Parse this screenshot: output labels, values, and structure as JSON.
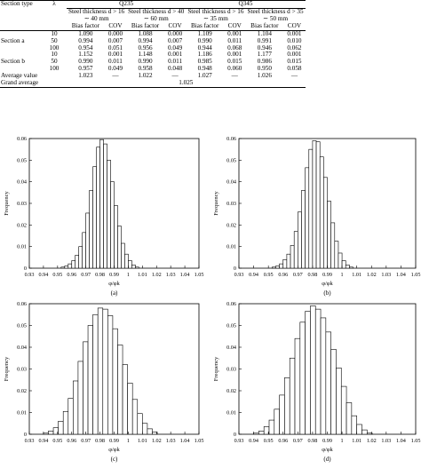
{
  "table": {
    "grades": [
      "Q235",
      "Q345"
    ],
    "col_section": "Section type",
    "col_lambda": "λ",
    "thickness_groups": [
      {
        "line1": "Steel thickness d > 16",
        "line2": "∼ 40 mm"
      },
      {
        "line1": "Steel thickness d > 40",
        "line2": "∼ 60 mm"
      },
      {
        "line1": "Steel thickness d > 16",
        "line2": "∼ 35 mm"
      },
      {
        "line1": "Steel thickness d > 35",
        "line2": "∼ 50 mm"
      }
    ],
    "sub_headers": [
      "Bias factor",
      "COV",
      "Bias factor",
      "COV",
      "Bias factor",
      "COV",
      "Bias factor",
      "COV"
    ],
    "rows": [
      {
        "section": "",
        "lambda": "10",
        "values": [
          "1.090",
          "0.000",
          "1.088",
          "0.000",
          "1.109",
          "0.001",
          "1.104",
          "0.001"
        ]
      },
      {
        "section": "Section a",
        "lambda": "50",
        "values": [
          "0.994",
          "0.007",
          "0.994",
          "0.007",
          "0.990",
          "0.011",
          "0.991",
          "0.010"
        ]
      },
      {
        "section": "",
        "lambda": "100",
        "values": [
          "0.954",
          "0.051",
          "0.956",
          "0.049",
          "0.944",
          "0.068",
          "0.946",
          "0.062"
        ]
      },
      {
        "section": "",
        "lambda": "10",
        "values": [
          "1.152",
          "0.001",
          "1.148",
          "0.001",
          "1.186",
          "0.001",
          "1.177",
          "0.001"
        ]
      },
      {
        "section": "Section b",
        "lambda": "50",
        "values": [
          "0.990",
          "0.011",
          "0.990",
          "0.011",
          "0.985",
          "0.015",
          "0.986",
          "0.015"
        ]
      },
      {
        "section": "",
        "lambda": "100",
        "values": [
          "0.957",
          "0.049",
          "0.958",
          "0.048",
          "0.948",
          "0.060",
          "0.950",
          "0.058"
        ]
      }
    ],
    "average": {
      "label": "Average value",
      "values": [
        "1.023",
        "—",
        "1.022",
        "—",
        "1.027",
        "—",
        "1.026",
        "—"
      ]
    },
    "grand": {
      "label": "Grand average",
      "value": "1.025"
    }
  },
  "chart_data": [
    {
      "type": "bar",
      "caption": "(a)",
      "xlabel": "φ/φk",
      "ylabel": "Frequency",
      "xlim": [
        0.93,
        1.05
      ],
      "ylim": [
        0,
        0.06
      ],
      "xticks": [
        "0.93",
        "0.94",
        "0.95",
        "0.96",
        "0.97",
        "0.98",
        "0.99",
        "1",
        "1.01",
        "1.02",
        "1.03",
        "1.04",
        "1.05"
      ],
      "yticks": [
        "0",
        "0.01",
        "0.02",
        "0.03",
        "0.04",
        "0.05",
        "0.06"
      ],
      "bin_start": 0.9525,
      "bin_width": 0.0025,
      "values": [
        0.0005,
        0.001,
        0.002,
        0.0035,
        0.006,
        0.01,
        0.0165,
        0.0255,
        0.036,
        0.047,
        0.056,
        0.0595,
        0.0575,
        0.05,
        0.04,
        0.029,
        0.0195,
        0.0115,
        0.0065,
        0.0035,
        0.0015,
        0.0005
      ]
    },
    {
      "type": "bar",
      "caption": "(b)",
      "xlabel": "φ/φk",
      "ylabel": "Frequency",
      "xlim": [
        0.93,
        1.05
      ],
      "ylim": [
        0,
        0.06
      ],
      "xticks": [
        "0.93",
        "0.94",
        "0.95",
        "0.96",
        "0.97",
        "0.98",
        "0.99",
        "1",
        "1.01",
        "1.02",
        "1.03",
        "1.04",
        "1.05"
      ],
      "yticks": [
        "0",
        "0.01",
        "0.02",
        "0.03",
        "0.04",
        "0.05",
        "0.06"
      ],
      "bin_start": 0.9525,
      "bin_width": 0.0025,
      "values": [
        0.0005,
        0.001,
        0.002,
        0.004,
        0.0065,
        0.0105,
        0.017,
        0.026,
        0.036,
        0.0465,
        0.055,
        0.059,
        0.0585,
        0.0515,
        0.042,
        0.031,
        0.021,
        0.0125,
        0.007,
        0.0035,
        0.0015,
        0.0005
      ]
    },
    {
      "type": "bar",
      "caption": "(c)",
      "xlabel": "φ/φk",
      "ylabel": "Frequency",
      "xlim": [
        0.93,
        1.05
      ],
      "ylim": [
        0,
        0.06
      ],
      "xticks": [
        "0.93",
        "0.94",
        "0.95",
        "0.96",
        "0.97",
        "0.98",
        "0.99",
        "1",
        "1.01",
        "1.02",
        "1.03",
        "1.04",
        "1.05"
      ],
      "yticks": [
        "0",
        "0.01",
        "0.02",
        "0.03",
        "0.04",
        "0.05",
        "0.06"
      ],
      "bin_start": 0.94,
      "bin_width": 0.0035,
      "values": [
        0.0005,
        0.0015,
        0.003,
        0.006,
        0.0105,
        0.0165,
        0.0245,
        0.0335,
        0.0425,
        0.05,
        0.055,
        0.058,
        0.0575,
        0.0545,
        0.0485,
        0.041,
        0.032,
        0.0235,
        0.016,
        0.0095,
        0.005,
        0.0025,
        0.001
      ]
    },
    {
      "type": "bar",
      "caption": "(d)",
      "xlabel": "φ/φk",
      "ylabel": "Frequency",
      "xlim": [
        0.93,
        1.05
      ],
      "ylim": [
        0,
        0.06
      ],
      "xticks": [
        "0.93",
        "0.94",
        "0.95",
        "0.96",
        "0.97",
        "0.98",
        "0.99",
        "1",
        "1.01",
        "1.02",
        "1.03",
        "1.04",
        "1.05"
      ],
      "yticks": [
        "0",
        "0.01",
        "0.02",
        "0.03",
        "0.04",
        "0.05",
        "0.06"
      ],
      "bin_start": 0.94,
      "bin_width": 0.0035,
      "values": [
        0.0005,
        0.0015,
        0.0035,
        0.0065,
        0.0115,
        0.018,
        0.026,
        0.035,
        0.044,
        0.0515,
        0.0565,
        0.059,
        0.0575,
        0.0535,
        0.047,
        0.039,
        0.0305,
        0.022,
        0.0145,
        0.0085,
        0.0045,
        0.002,
        0.0005
      ]
    }
  ]
}
